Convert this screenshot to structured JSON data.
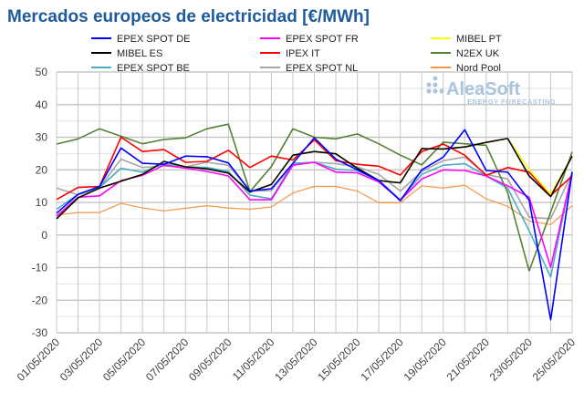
{
  "chart_data": {
    "type": "line",
    "title": "Mercados europeos de electricidad [€/MWh]",
    "xlabel": "",
    "ylabel": "",
    "ylim": [
      -30,
      50
    ],
    "yticks": [
      -30,
      -20,
      -10,
      0,
      10,
      20,
      30,
      40,
      50
    ],
    "grid": true,
    "legend": "top",
    "x": [
      "01/05/2020",
      "02/05/2020",
      "03/05/2020",
      "04/05/2020",
      "05/05/2020",
      "06/05/2020",
      "07/05/2020",
      "08/05/2020",
      "09/05/2020",
      "10/05/2020",
      "11/05/2020",
      "12/05/2020",
      "13/05/2020",
      "14/05/2020",
      "15/05/2020",
      "16/05/2020",
      "17/05/2020",
      "18/05/2020",
      "19/05/2020",
      "20/05/2020",
      "21/05/2020",
      "22/05/2020",
      "23/05/2020",
      "24/05/2020",
      "25/05/2020"
    ],
    "xtick_labels": [
      "01/05/2020",
      "03/05/2020",
      "05/05/2020",
      "07/05/2020",
      "09/05/2020",
      "11/05/2020",
      "13/05/2020",
      "15/05/2020",
      "17/05/2020",
      "19/05/2020",
      "21/05/2020",
      "23/05/2020",
      "25/05/2020"
    ],
    "series": [
      {
        "name": "Nord Pool",
        "color": "#f79646",
        "values": [
          6.2,
          6.9,
          6.9,
          9.7,
          8.3,
          7.4,
          8.2,
          9.0,
          8.3,
          7.9,
          8.6,
          12.9,
          14.9,
          14.9,
          13.5,
          9.9,
          9.9,
          15.1,
          14.4,
          15.3,
          11.1,
          8.8,
          4.3,
          3.2,
          9.0
        ]
      },
      {
        "name": "EPEX SPOT NL",
        "color": "#a6a6a6",
        "values": [
          14.4,
          12.3,
          14.6,
          23.3,
          20.7,
          21.2,
          20.9,
          22.3,
          21.4,
          13.5,
          13.6,
          21.8,
          22.3,
          21.9,
          20.9,
          18.6,
          13.5,
          19.5,
          22.8,
          23.9,
          18.6,
          17.2,
          5.5,
          5.0,
          19.0
        ]
      },
      {
        "name": "EPEX SPOT BE",
        "color": "#4bacc6",
        "values": [
          7.9,
          12.5,
          14.6,
          20.5,
          19.3,
          21.9,
          20.9,
          20.7,
          19.5,
          12.2,
          11.1,
          22.0,
          22.3,
          20.2,
          19.8,
          16.7,
          10.8,
          18.6,
          21.4,
          21.9,
          18.1,
          14.4,
          1.3,
          -12.9,
          19.5
        ]
      },
      {
        "name": "N2EX UK",
        "color": "#548235",
        "values": [
          27.9,
          29.5,
          32.6,
          30.3,
          28.0,
          29.3,
          29.8,
          32.6,
          34.0,
          13.3,
          21.0,
          32.6,
          30.0,
          29.5,
          31.0,
          28.0,
          24.5,
          21.5,
          28.5,
          28.0,
          27.5,
          13.0,
          -11.0,
          7.0,
          25.5
        ]
      },
      {
        "name": "EPEX SPOT FR",
        "color": "#ff00ff",
        "values": [
          5.8,
          11.6,
          12.0,
          16.7,
          18.3,
          21.4,
          20.5,
          19.5,
          18.1,
          10.8,
          10.8,
          21.4,
          22.3,
          19.3,
          19.1,
          16.3,
          10.7,
          17.2,
          20.0,
          19.8,
          18.1,
          15.1,
          11.6,
          -9.9,
          19.1
        ]
      },
      {
        "name": "IPEX IT",
        "color": "#ff0000",
        "values": [
          10.9,
          14.6,
          14.9,
          30.0,
          25.6,
          26.2,
          22.3,
          22.6,
          26.0,
          20.7,
          24.2,
          23.0,
          29.2,
          22.8,
          21.7,
          21.1,
          18.4,
          25.6,
          27.9,
          24.5,
          18.3,
          20.7,
          19.3,
          12.1,
          18.1
        ]
      },
      {
        "name": "MIBEL PT",
        "color": "#ffff00",
        "values": [
          5.0,
          11.4,
          14.4,
          16.5,
          18.6,
          22.6,
          20.9,
          20.3,
          19.0,
          13.2,
          15.5,
          24.5,
          25.6,
          24.9,
          20.5,
          16.7,
          16.0,
          26.5,
          26.4,
          27.0,
          28.4,
          29.6,
          20.0,
          12.5,
          24.2
        ]
      },
      {
        "name": "MIBEL ES",
        "color": "#000000",
        "values": [
          5.0,
          11.4,
          14.4,
          16.5,
          18.6,
          22.6,
          20.9,
          20.3,
          19.0,
          13.2,
          15.5,
          24.5,
          25.6,
          24.9,
          20.5,
          16.7,
          16.0,
          26.5,
          26.4,
          27.0,
          28.4,
          29.6,
          18.1,
          11.8,
          24.2
        ]
      },
      {
        "name": "EPEX SPOT DE",
        "color": "#0000ff",
        "values": [
          6.7,
          12.5,
          14.9,
          26.7,
          22.0,
          21.7,
          24.2,
          24.0,
          22.1,
          13.5,
          14.2,
          22.0,
          29.8,
          23.3,
          20.0,
          16.7,
          10.5,
          20.0,
          23.9,
          32.3,
          19.8,
          19.3,
          10.7,
          -26.0,
          19.3
        ]
      }
    ],
    "legend_order": [
      "EPEX SPOT DE",
      "EPEX SPOT FR",
      "MIBEL PT",
      "MIBEL ES",
      "IPEX IT",
      "N2EX UK",
      "EPEX SPOT BE",
      "EPEX SPOT NL",
      "Nord Pool"
    ]
  },
  "logo": {
    "name": "AleaSoft",
    "tagline": "ENERGY FORECASTING"
  }
}
